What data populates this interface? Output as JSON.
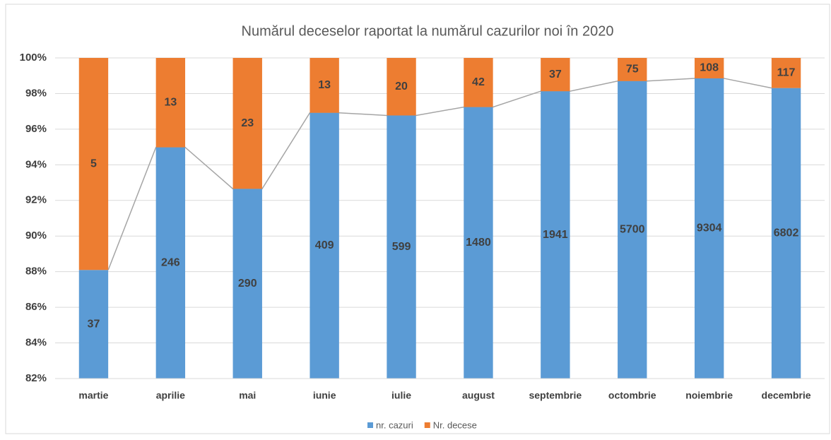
{
  "chart_data": {
    "type": "bar",
    "stacking": "percent",
    "title": "Numărul deceselor raportat la numărul cazurilor noi în 2020",
    "categories": [
      "martie",
      "aprilie",
      "mai",
      "iunie",
      "iulie",
      "august",
      "septembrie",
      "octombrie",
      "noiembrie",
      "decembrie"
    ],
    "series": [
      {
        "name": "nr. cazuri",
        "color": "#5b9bd5",
        "values": [
          37,
          246,
          290,
          409,
          599,
          1480,
          1941,
          5700,
          9304,
          6802
        ]
      },
      {
        "name": "Nr. decese",
        "color": "#ed7d31",
        "values": [
          5,
          13,
          23,
          13,
          20,
          42,
          37,
          75,
          108,
          117
        ]
      }
    ],
    "series_line_color": "#a5a5a5",
    "ylim": [
      82,
      100
    ],
    "yticks": [
      {
        "value": 82,
        "label": "82%"
      },
      {
        "value": 84,
        "label": "84%"
      },
      {
        "value": 86,
        "label": "86%"
      },
      {
        "value": 88,
        "label": "88%"
      },
      {
        "value": 90,
        "label": "90%"
      },
      {
        "value": 92,
        "label": "92%"
      },
      {
        "value": 94,
        "label": "94%"
      },
      {
        "value": 96,
        "label": "96%"
      },
      {
        "value": 98,
        "label": "98%"
      },
      {
        "value": 100,
        "label": "100%"
      }
    ],
    "grid": true,
    "legend": "bottom"
  }
}
